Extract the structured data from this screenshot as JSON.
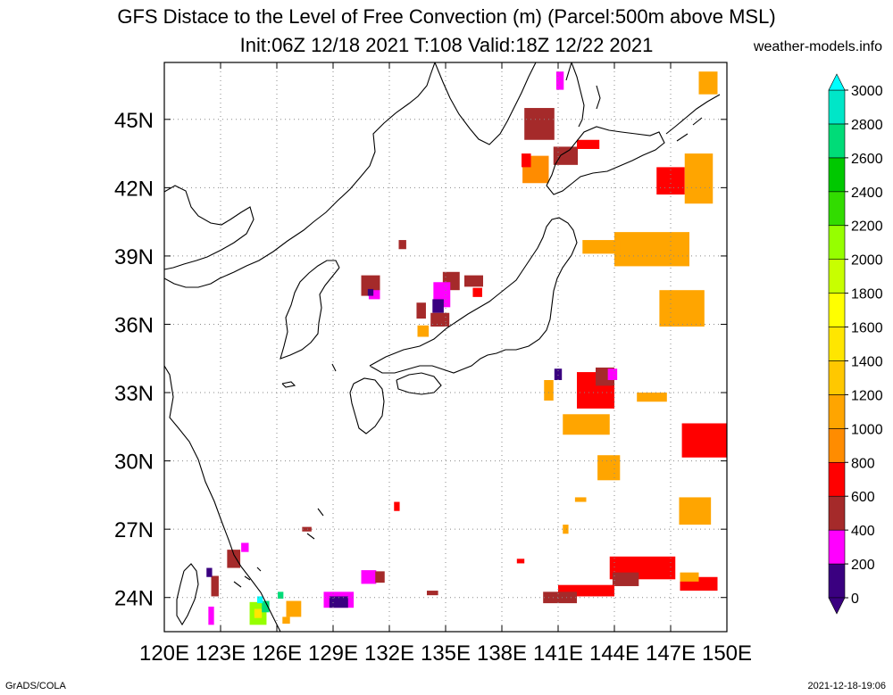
{
  "header": {
    "title": "GFS Distace to the Level of Free Convection (m) (Parcel:500m above MSL)",
    "subtitle": "Init:06Z 12/18 2021 T:108 Valid:18Z 12/22 2021",
    "site": "weather-models.info"
  },
  "footer": {
    "left": "GrADS/COLA",
    "right": "2021-12-18-19:06"
  },
  "map": {
    "lon_range": [
      120,
      150
    ],
    "lat_range": [
      22.5,
      47.5
    ],
    "lon_labels": [
      "120E",
      "123E",
      "126E",
      "129E",
      "132E",
      "135E",
      "138E",
      "141E",
      "144E",
      "147E",
      "150E"
    ],
    "lat_labels": [
      "24N",
      "27N",
      "30N",
      "33N",
      "36N",
      "39N",
      "42N",
      "45N"
    ],
    "lat_values": [
      24,
      27,
      30,
      33,
      36,
      39,
      42,
      45
    ],
    "grid": "dotted",
    "coastline_color": "#000000"
  },
  "legend": {
    "levels": [
      "0",
      "200",
      "400",
      "600",
      "800",
      "1000",
      "1200",
      "1400",
      "1600",
      "1800",
      "2000",
      "2200",
      "2400",
      "2600",
      "2800",
      "3000"
    ],
    "colors": [
      "#3a0080",
      "#ff00ff",
      "#a52a2a",
      "#ff0000",
      "#ff8c00",
      "#ffa500",
      "#ffc800",
      "#ffe600",
      "#ffff00",
      "#c8ff00",
      "#96ff00",
      "#32dc00",
      "#00c800",
      "#00dc78",
      "#00e6c8",
      "#00ffff"
    ]
  },
  "field_patches": [
    {
      "lon": 140.0,
      "lat": 44.8,
      "w": 1.6,
      "h": 1.4,
      "color": "#a52a2a"
    },
    {
      "lon": 141.1,
      "lat": 46.7,
      "w": 0.4,
      "h": 0.8,
      "color": "#ff00ff"
    },
    {
      "lon": 139.8,
      "lat": 42.8,
      "w": 1.4,
      "h": 1.2,
      "color": "#ff8c00"
    },
    {
      "lon": 141.4,
      "lat": 43.4,
      "w": 1.3,
      "h": 0.8,
      "color": "#a52a2a"
    },
    {
      "lon": 139.3,
      "lat": 43.2,
      "w": 0.5,
      "h": 0.6,
      "color": "#ff0000"
    },
    {
      "lon": 142.6,
      "lat": 43.9,
      "w": 1.2,
      "h": 0.4,
      "color": "#ff0000"
    },
    {
      "lon": 147.0,
      "lat": 42.3,
      "w": 1.5,
      "h": 1.2,
      "color": "#ff0000"
    },
    {
      "lon": 149.0,
      "lat": 46.6,
      "w": 1.0,
      "h": 1.0,
      "color": "#ffa500"
    },
    {
      "lon": 148.5,
      "lat": 42.4,
      "w": 1.5,
      "h": 2.2,
      "color": "#ffa500"
    },
    {
      "lon": 146.0,
      "lat": 39.3,
      "w": 4.0,
      "h": 1.5,
      "color": "#ffa500"
    },
    {
      "lon": 143.3,
      "lat": 39.4,
      "w": 2.0,
      "h": 0.6,
      "color": "#ffa500"
    },
    {
      "lon": 147.6,
      "lat": 36.7,
      "w": 2.4,
      "h": 1.6,
      "color": "#ffa500"
    },
    {
      "lon": 143.0,
      "lat": 33.1,
      "w": 2.0,
      "h": 1.6,
      "color": "#ff0000"
    },
    {
      "lon": 143.5,
      "lat": 33.7,
      "w": 1.0,
      "h": 0.8,
      "color": "#a52a2a"
    },
    {
      "lon": 143.9,
      "lat": 33.8,
      "w": 0.5,
      "h": 0.5,
      "color": "#ff00ff"
    },
    {
      "lon": 140.5,
      "lat": 33.1,
      "w": 0.5,
      "h": 0.9,
      "color": "#ffa500"
    },
    {
      "lon": 141.0,
      "lat": 33.8,
      "w": 0.4,
      "h": 0.5,
      "color": "#3a0080"
    },
    {
      "lon": 142.5,
      "lat": 31.6,
      "w": 2.5,
      "h": 0.9,
      "color": "#ffa500"
    },
    {
      "lon": 143.7,
      "lat": 29.7,
      "w": 1.2,
      "h": 1.1,
      "color": "#ffa500"
    },
    {
      "lon": 148.8,
      "lat": 30.9,
      "w": 2.4,
      "h": 1.5,
      "color": "#ff0000"
    },
    {
      "lon": 146.0,
      "lat": 32.8,
      "w": 1.6,
      "h": 0.4,
      "color": "#ffa500"
    },
    {
      "lon": 148.3,
      "lat": 27.8,
      "w": 1.7,
      "h": 1.2,
      "color": "#ffa500"
    },
    {
      "lon": 145.5,
      "lat": 25.3,
      "w": 3.5,
      "h": 1.0,
      "color": "#ff0000"
    },
    {
      "lon": 144.6,
      "lat": 24.8,
      "w": 1.4,
      "h": 0.6,
      "color": "#a52a2a"
    },
    {
      "lon": 148.5,
      "lat": 24.6,
      "w": 2.0,
      "h": 0.6,
      "color": "#ff0000"
    },
    {
      "lon": 142.5,
      "lat": 24.3,
      "w": 3.0,
      "h": 0.5,
      "color": "#ff0000"
    },
    {
      "lon": 141.1,
      "lat": 24.0,
      "w": 1.8,
      "h": 0.5,
      "color": "#a52a2a"
    },
    {
      "lon": 148.0,
      "lat": 24.9,
      "w": 1.0,
      "h": 0.4,
      "color": "#ffa500"
    },
    {
      "lon": 135.3,
      "lat": 37.9,
      "w": 0.9,
      "h": 0.8,
      "color": "#a52a2a"
    },
    {
      "lon": 134.8,
      "lat": 37.3,
      "w": 0.9,
      "h": 1.1,
      "color": "#ff00ff"
    },
    {
      "lon": 134.6,
      "lat": 36.8,
      "w": 0.6,
      "h": 0.6,
      "color": "#3a0080"
    },
    {
      "lon": 134.7,
      "lat": 36.2,
      "w": 1.0,
      "h": 0.6,
      "color": "#a52a2a"
    },
    {
      "lon": 133.8,
      "lat": 35.7,
      "w": 0.6,
      "h": 0.5,
      "color": "#ffa500"
    },
    {
      "lon": 133.7,
      "lat": 36.6,
      "w": 0.5,
      "h": 0.7,
      "color": "#a52a2a"
    },
    {
      "lon": 136.5,
      "lat": 37.9,
      "w": 1.0,
      "h": 0.5,
      "color": "#a52a2a"
    },
    {
      "lon": 136.7,
      "lat": 37.4,
      "w": 0.5,
      "h": 0.4,
      "color": "#ff0000"
    },
    {
      "lon": 131.0,
      "lat": 37.7,
      "w": 1.0,
      "h": 0.9,
      "color": "#a52a2a"
    },
    {
      "lon": 131.2,
      "lat": 37.3,
      "w": 0.6,
      "h": 0.4,
      "color": "#ff00ff"
    },
    {
      "lon": 131.0,
      "lat": 37.4,
      "w": 0.3,
      "h": 0.3,
      "color": "#3a0080"
    },
    {
      "lon": 132.7,
      "lat": 39.5,
      "w": 0.4,
      "h": 0.4,
      "color": "#a52a2a"
    },
    {
      "lon": 125.0,
      "lat": 23.3,
      "w": 0.9,
      "h": 1.0,
      "color": "#96ff00"
    },
    {
      "lon": 125.0,
      "lat": 23.3,
      "w": 0.4,
      "h": 0.4,
      "color": "#ffe600"
    },
    {
      "lon": 125.4,
      "lat": 23.6,
      "w": 0.4,
      "h": 0.5,
      "color": "#00dc78"
    },
    {
      "lon": 125.1,
      "lat": 23.9,
      "w": 0.3,
      "h": 0.3,
      "color": "#00ffff"
    },
    {
      "lon": 123.7,
      "lat": 25.7,
      "w": 0.7,
      "h": 0.8,
      "color": "#a52a2a"
    },
    {
      "lon": 124.3,
      "lat": 26.2,
      "w": 0.4,
      "h": 0.4,
      "color": "#ff00ff"
    },
    {
      "lon": 122.7,
      "lat": 24.5,
      "w": 0.4,
      "h": 0.9,
      "color": "#a52a2a"
    },
    {
      "lon": 122.5,
      "lat": 23.2,
      "w": 0.3,
      "h": 0.8,
      "color": "#ff00ff"
    },
    {
      "lon": 122.4,
      "lat": 25.1,
      "w": 0.3,
      "h": 0.4,
      "color": "#3a0080"
    },
    {
      "lon": 126.9,
      "lat": 23.5,
      "w": 0.8,
      "h": 0.7,
      "color": "#ffa500"
    },
    {
      "lon": 126.5,
      "lat": 23.0,
      "w": 0.4,
      "h": 0.3,
      "color": "#ffa500"
    },
    {
      "lon": 126.2,
      "lat": 24.1,
      "w": 0.3,
      "h": 0.3,
      "color": "#00dc78"
    },
    {
      "lon": 129.3,
      "lat": 23.9,
      "w": 1.6,
      "h": 0.7,
      "color": "#ff00ff"
    },
    {
      "lon": 129.3,
      "lat": 23.8,
      "w": 1.0,
      "h": 0.5,
      "color": "#3a0080"
    },
    {
      "lon": 130.9,
      "lat": 24.9,
      "w": 0.8,
      "h": 0.6,
      "color": "#ff00ff"
    },
    {
      "lon": 131.5,
      "lat": 24.9,
      "w": 0.5,
      "h": 0.5,
      "color": "#a52a2a"
    },
    {
      "lon": 127.6,
      "lat": 27.0,
      "w": 0.5,
      "h": 0.2,
      "color": "#a52a2a"
    },
    {
      "lon": 132.4,
      "lat": 28.0,
      "w": 0.3,
      "h": 0.4,
      "color": "#ff0000"
    },
    {
      "lon": 134.3,
      "lat": 24.2,
      "w": 0.6,
      "h": 0.2,
      "color": "#a52a2a"
    },
    {
      "lon": 139.0,
      "lat": 25.6,
      "w": 0.4,
      "h": 0.2,
      "color": "#ff0000"
    },
    {
      "lon": 141.4,
      "lat": 27.0,
      "w": 0.3,
      "h": 0.4,
      "color": "#ffa500"
    },
    {
      "lon": 142.2,
      "lat": 28.3,
      "w": 0.6,
      "h": 0.2,
      "color": "#ffa500"
    }
  ]
}
